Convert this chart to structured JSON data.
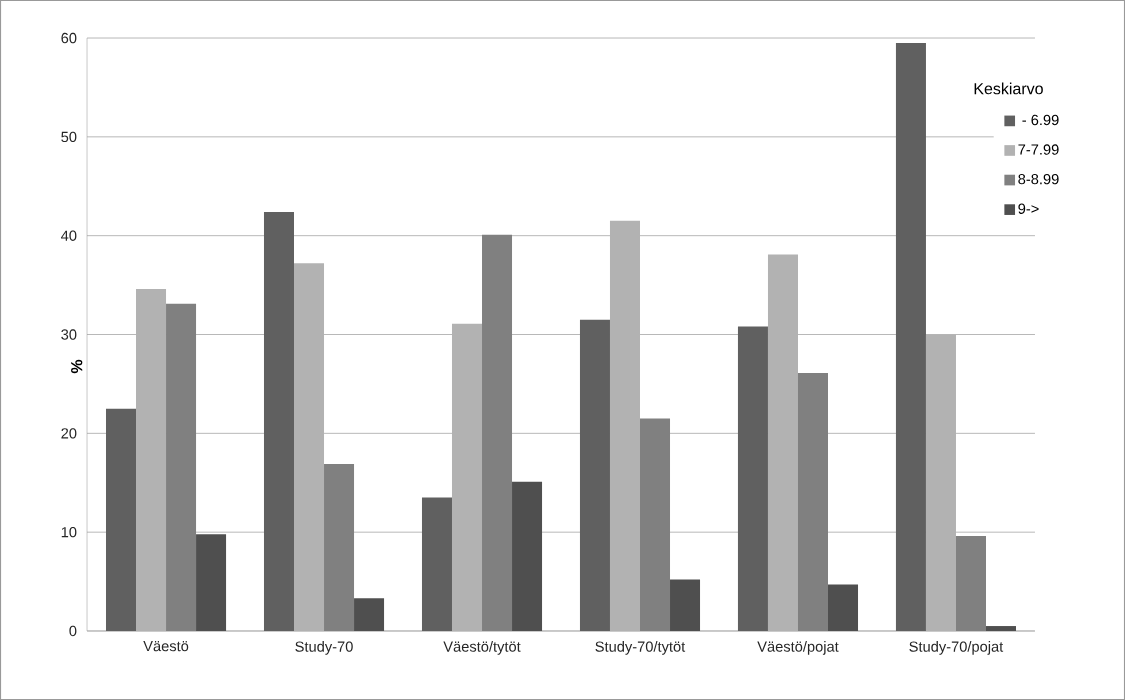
{
  "chart_data": {
    "type": "bar",
    "ylabel": "%",
    "legend_title": "Keskiarvo",
    "categories": [
      "Väestö",
      "Study-70",
      "Väestö/tytöt",
      "Study-70/tytöt",
      "Väestö/pojat",
      "Study-70/pojat"
    ],
    "series": [
      {
        "name": " - 6.99",
        "color": "#606060",
        "values": [
          22.5,
          42.4,
          13.5,
          31.5,
          30.8,
          59.5
        ]
      },
      {
        "name": "7-7.99",
        "color": "#b2b2b2",
        "values": [
          34.6,
          37.2,
          31.1,
          41.5,
          38.1,
          30.0
        ]
      },
      {
        "name": "8-8.99",
        "color": "#808080",
        "values": [
          33.1,
          16.9,
          40.1,
          21.5,
          26.1,
          9.6
        ]
      },
      {
        "name": "9->",
        "color": "#4f4f4f",
        "values": [
          9.8,
          3.3,
          15.1,
          5.2,
          4.7,
          0.5
        ]
      }
    ],
    "ylim": [
      0,
      60
    ],
    "yticks": [
      0,
      10,
      20,
      30,
      40,
      50,
      60
    ],
    "grid": "y",
    "legend": "top right"
  }
}
